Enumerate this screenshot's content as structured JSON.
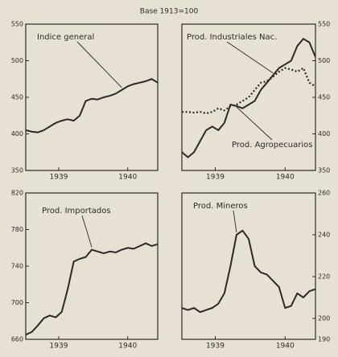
{
  "header": {
    "subtitle": "Base 1913=100"
  },
  "chart_data": [
    {
      "type": "line",
      "y_axis_position": "left",
      "x": [
        0,
        1,
        2,
        3,
        4,
        5,
        6,
        7,
        8,
        9,
        10,
        11,
        12,
        13,
        14,
        15,
        16,
        17,
        18,
        19,
        20,
        21,
        22
      ],
      "xlim": [
        0,
        22
      ],
      "xticks": [
        {
          "value": 5.5,
          "label": "1939"
        },
        {
          "value": 17,
          "label": "1940"
        }
      ],
      "ylim": [
        350,
        550
      ],
      "yticks": [
        350,
        400,
        450,
        500,
        550
      ],
      "series": [
        {
          "name": "Indice general",
          "color": "#2b2a27",
          "values": [
            405,
            403,
            402,
            405,
            410,
            415,
            418,
            420,
            418,
            425,
            445,
            448,
            447,
            450,
            452,
            455,
            460,
            465,
            468,
            470,
            472,
            475,
            470
          ]
        }
      ]
    },
    {
      "type": "line",
      "y_axis_position": "right",
      "x": [
        0,
        1,
        2,
        3,
        4,
        5,
        6,
        7,
        8,
        9,
        10,
        11,
        12,
        13,
        14,
        15,
        16,
        17,
        18,
        19,
        20,
        21,
        22
      ],
      "xlim": [
        0,
        22
      ],
      "xticks": [
        {
          "value": 5.5,
          "label": "1939"
        },
        {
          "value": 17,
          "label": "1940"
        }
      ],
      "ylim": [
        350,
        550
      ],
      "yticks": [
        350,
        400,
        450,
        500,
        550
      ],
      "series": [
        {
          "name": "Prod. Industriales Nac.",
          "color": "#2b2a27",
          "dashed": false,
          "values": [
            375,
            368,
            375,
            390,
            405,
            410,
            405,
            415,
            440,
            438,
            435,
            440,
            445,
            460,
            470,
            480,
            490,
            495,
            500,
            520,
            530,
            525,
            505
          ]
        },
        {
          "name": "Prod. Agropecuarios",
          "color": "#2b2a27",
          "dashed": true,
          "values": [
            430,
            430,
            429,
            430,
            428,
            430,
            435,
            432,
            438,
            440,
            445,
            450,
            460,
            470,
            472,
            478,
            485,
            490,
            488,
            485,
            490,
            470,
            465
          ]
        }
      ]
    },
    {
      "type": "line",
      "y_axis_position": "left",
      "x": [
        0,
        1,
        2,
        3,
        4,
        5,
        6,
        7,
        8,
        9,
        10,
        11,
        12,
        13,
        14,
        15,
        16,
        17,
        18,
        19,
        20,
        21,
        22
      ],
      "xlim": [
        0,
        22
      ],
      "xticks": [
        {
          "value": 5.5,
          "label": "1939"
        },
        {
          "value": 17,
          "label": "1940"
        }
      ],
      "ylim": [
        660,
        820
      ],
      "yticks": [
        660,
        700,
        740,
        780,
        820
      ],
      "series": [
        {
          "name": "Prod. Importados",
          "color": "#2b2a27",
          "values": [
            665,
            668,
            675,
            683,
            686,
            684,
            690,
            715,
            745,
            748,
            750,
            758,
            756,
            754,
            756,
            755,
            758,
            760,
            759,
            762,
            765,
            762,
            764
          ]
        }
      ]
    },
    {
      "type": "line",
      "y_axis_position": "right",
      "x": [
        0,
        1,
        2,
        3,
        4,
        5,
        6,
        7,
        8,
        9,
        10,
        11,
        12,
        13,
        14,
        15,
        16,
        17,
        18,
        19,
        20,
        21,
        22
      ],
      "xlim": [
        0,
        22
      ],
      "xticks": [
        {
          "value": 5.5,
          "label": "1939"
        },
        {
          "value": 17,
          "label": "1940"
        }
      ],
      "ylim": [
        190,
        260
      ],
      "yticks": [
        190,
        200,
        220,
        240,
        260
      ],
      "series": [
        {
          "name": "Prod. Mineros",
          "color": "#2b2a27",
          "values": [
            205,
            204,
            205,
            203,
            204,
            205,
            207,
            212,
            225,
            240,
            242,
            238,
            225,
            222,
            221,
            218,
            215,
            205,
            206,
            212,
            210,
            213,
            214
          ]
        }
      ]
    }
  ]
}
